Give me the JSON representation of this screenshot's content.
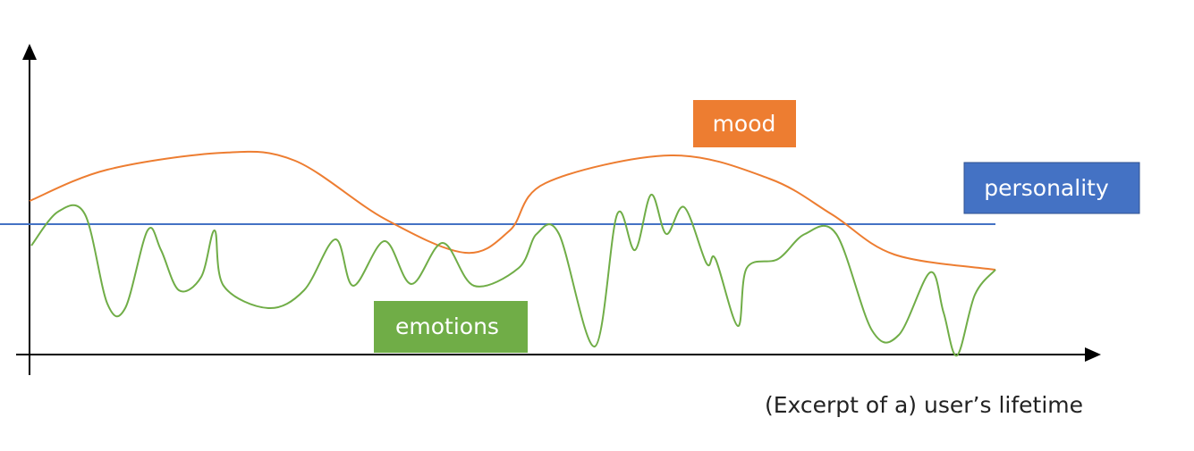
{
  "labels": {
    "mood": "mood",
    "personality": "personality",
    "emotions": "emotions"
  },
  "axis_label": "(Excerpt of a) user’s lifetime"
}
